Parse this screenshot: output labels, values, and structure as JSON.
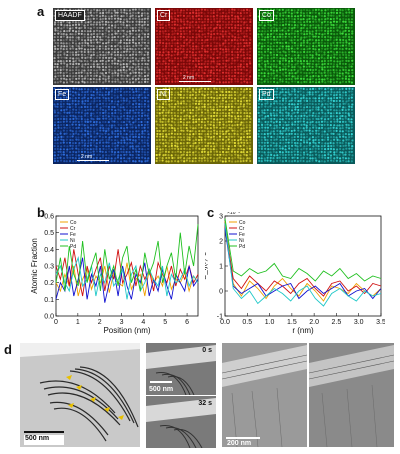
{
  "panel_a": {
    "letter": "a",
    "tiles": [
      {
        "label": "HAADF",
        "color": "#bdbdbd",
        "bg": "#3a3a3a",
        "scale": ""
      },
      {
        "label": "Cr",
        "color": "#e23030",
        "bg": "#7a0808",
        "scale": "2 nm"
      },
      {
        "label": "Co",
        "color": "#3ddf3d",
        "bg": "#0a5a0a",
        "scale": ""
      },
      {
        "label": "Fe",
        "color": "#2f6fe0",
        "bg": "#0b2560",
        "scale": "2 nm"
      },
      {
        "label": "Ni",
        "color": "#e8e23a",
        "bg": "#6b6608",
        "scale": ""
      },
      {
        "label": "Pd",
        "color": "#35d5d5",
        "bg": "#0a5a5a",
        "scale": ""
      }
    ]
  },
  "panel_b": {
    "letter": "b"
  },
  "panel_c": {
    "letter": "c"
  },
  "panel_d": {
    "letter": "d",
    "scale1": "500 nm",
    "scale2": "500 nm",
    "scale3": "200 nm",
    "time1": "0 s",
    "time2": "32 s"
  },
  "chart_data": [
    {
      "type": "line",
      "xlabel": "Position (nm)",
      "ylabel": "Atomic Fraction",
      "xlim": [
        0,
        6.5
      ],
      "ylim": [
        0,
        0.6
      ],
      "xticks": [
        "0",
        "1",
        "2",
        "3",
        "4",
        "5",
        "6"
      ],
      "yticks": [
        "0.0",
        "0.1",
        "0.2",
        "0.3",
        "0.4",
        "0.5",
        "0.6"
      ],
      "legend": "top-left",
      "series": [
        {
          "name": "Co",
          "color": "#f0a000",
          "values": [
            0.2,
            0.15,
            0.25,
            0.18,
            0.3,
            0.12,
            0.22,
            0.28,
            0.16,
            0.24,
            0.2,
            0.3,
            0.14,
            0.26,
            0.2,
            0.18,
            0.32,
            0.16,
            0.22,
            0.25,
            0.12,
            0.28,
            0.2,
            0.24,
            0.18,
            0.3,
            0.16,
            0.22,
            0.2,
            0.26,
            0.15,
            0.24,
            0.2
          ]
        },
        {
          "name": "Cr",
          "color": "#d01010",
          "values": [
            0.3,
            0.22,
            0.35,
            0.18,
            0.4,
            0.25,
            0.12,
            0.3,
            0.2,
            0.28,
            0.35,
            0.15,
            0.3,
            0.22,
            0.4,
            0.2,
            0.25,
            0.32,
            0.18,
            0.3,
            0.22,
            0.28,
            0.15,
            0.32,
            0.25,
            0.2,
            0.3,
            0.18,
            0.28,
            0.22,
            0.3,
            0.2,
            0.25
          ]
        },
        {
          "name": "Fe",
          "color": "#1010d0",
          "values": [
            0.1,
            0.2,
            0.15,
            0.3,
            0.12,
            0.22,
            0.35,
            0.1,
            0.25,
            0.18,
            0.3,
            0.08,
            0.2,
            0.28,
            0.12,
            0.3,
            0.18,
            0.1,
            0.25,
            0.2,
            0.32,
            0.12,
            0.22,
            0.15,
            0.28,
            0.18,
            0.1,
            0.25,
            0.2,
            0.15,
            0.3,
            0.18,
            0.22
          ]
        },
        {
          "name": "Ni",
          "color": "#20c8c8",
          "values": [
            0.25,
            0.3,
            0.2,
            0.15,
            0.28,
            0.35,
            0.18,
            0.22,
            0.3,
            0.12,
            0.25,
            0.2,
            0.32,
            0.18,
            0.22,
            0.28,
            0.1,
            0.25,
            0.3,
            0.15,
            0.2,
            0.28,
            0.22,
            0.18,
            0.3,
            0.12,
            0.25,
            0.2,
            0.22,
            0.28,
            0.18,
            0.24,
            0.2
          ]
        },
        {
          "name": "Pd",
          "color": "#20c020",
          "values": [
            0.2,
            0.35,
            0.15,
            0.42,
            0.25,
            0.18,
            0.45,
            0.2,
            0.3,
            0.38,
            0.15,
            0.4,
            0.22,
            0.3,
            0.18,
            0.35,
            0.42,
            0.2,
            0.28,
            0.15,
            0.38,
            0.25,
            0.32,
            0.45,
            0.2,
            0.3,
            0.38,
            0.22,
            0.5,
            0.25,
            0.42,
            0.3,
            0.55
          ]
        }
      ]
    },
    {
      "type": "line",
      "xlabel": "r (nm)",
      "ylabel": "S_ij(r)-c",
      "yexp": "×10⁻³",
      "xlim": [
        0,
        3.5
      ],
      "ylim": [
        -1,
        3
      ],
      "xticks": [
        "0.0",
        "0.5",
        "1.0",
        "1.5",
        "2.0",
        "2.5",
        "3.0",
        "3.5"
      ],
      "yticks": [
        "-1",
        "0",
        "1",
        "2",
        "3"
      ],
      "legend": "top-left",
      "series": [
        {
          "name": "Co",
          "color": "#f0a000",
          "values": [
            2.8,
            0.3,
            -0.2,
            0.4,
            0.1,
            -0.3,
            0.2,
            0.5,
            0.1,
            -0.2,
            0.3,
            0.0,
            -0.4,
            0.2,
            0.1,
            -0.1,
            0.3,
            0.0,
            -0.2,
            0.1
          ]
        },
        {
          "name": "Cr",
          "color": "#d01010",
          "values": [
            2.6,
            0.5,
            0.1,
            0.6,
            0.3,
            0.0,
            0.4,
            0.2,
            -0.1,
            0.3,
            0.5,
            0.1,
            -0.2,
            0.3,
            0.4,
            0.0,
            0.2,
            -0.1,
            0.3,
            0.2
          ]
        },
        {
          "name": "Fe",
          "color": "#1010d0",
          "values": [
            2.5,
            0.2,
            -0.1,
            0.1,
            0.3,
            -0.2,
            0.0,
            0.2,
            0.3,
            -0.3,
            0.0,
            0.2,
            -0.1,
            0.1,
            0.3,
            -0.2,
            0.0,
            0.1,
            -0.3,
            0.1
          ]
        },
        {
          "name": "Ni",
          "color": "#20c8c8",
          "values": [
            2.7,
            0.1,
            -0.3,
            0.0,
            -0.5,
            -0.2,
            0.1,
            -0.1,
            -0.4,
            0.0,
            0.2,
            -0.3,
            -0.6,
            -0.1,
            0.1,
            -0.2,
            -0.4,
            0.0,
            -0.2,
            -0.1
          ]
        },
        {
          "name": "Pd",
          "color": "#20c020",
          "values": [
            2.9,
            0.8,
            0.6,
            0.9,
            0.7,
            0.8,
            1.1,
            0.6,
            0.5,
            0.9,
            0.7,
            0.4,
            0.8,
            0.6,
            0.9,
            0.5,
            0.7,
            0.4,
            0.6,
            0.5
          ]
        }
      ]
    }
  ]
}
